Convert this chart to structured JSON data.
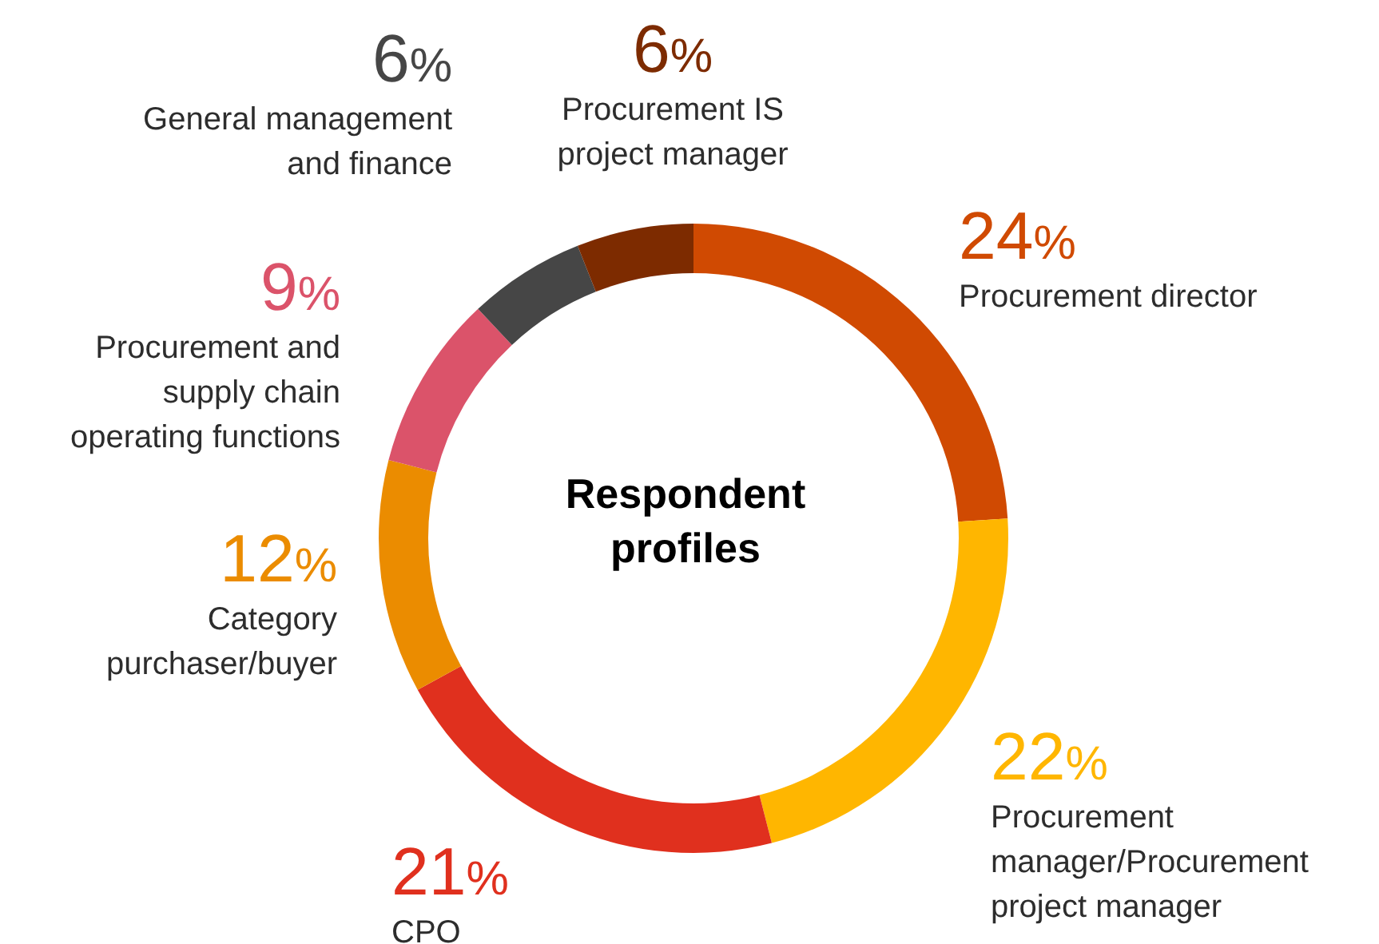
{
  "chart_data": {
    "type": "donut",
    "title": "Respondent profiles",
    "legend": false,
    "categories": [
      "Procurement director",
      "Procurement manager/Procurement project manager",
      "CPO",
      "Category purchaser/buyer",
      "Procurement and supply chain operating functions",
      "General management and finance",
      "Procurement IS project manager"
    ],
    "values": [
      24,
      22,
      21,
      12,
      9,
      6,
      6
    ],
    "value_labels": [
      "24%",
      "22%",
      "21%",
      "12%",
      "9%",
      "6%",
      "6%"
    ],
    "colors": [
      "#d04a02",
      "#ffb600",
      "#e0301e",
      "#eb8c00",
      "#db536a",
      "#464646",
      "#7d2b00"
    ]
  }
}
